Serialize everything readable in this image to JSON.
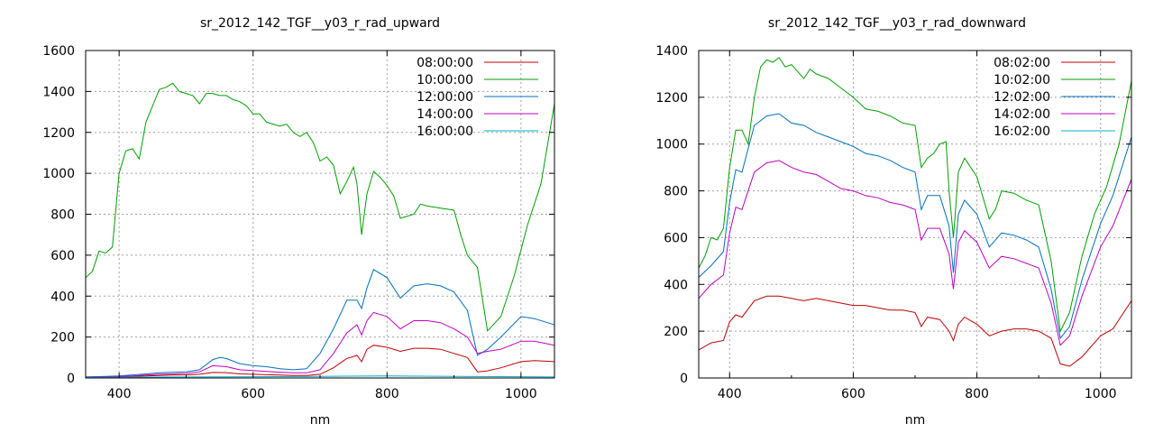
{
  "chart_data": [
    {
      "type": "line",
      "title": "sr_2012_142_TGF__y03_r_rad_upward",
      "xlabel": "nm",
      "ylabel": "",
      "xlim": [
        350,
        1050
      ],
      "ylim": [
        0,
        1600
      ],
      "xticks": [
        400,
        600,
        800,
        1000
      ],
      "yticks": [
        0,
        200,
        400,
        600,
        800,
        1000,
        1200,
        1400,
        1600
      ],
      "grid": true,
      "legend_position": "top-right",
      "series": [
        {
          "name": "08:00:00",
          "color": "#c00000",
          "x": [
            350,
            380,
            400,
            420,
            440,
            460,
            480,
            500,
            520,
            540,
            560,
            580,
            600,
            620,
            640,
            660,
            680,
            700,
            720,
            740,
            755,
            762,
            770,
            780,
            800,
            820,
            840,
            860,
            880,
            900,
            920,
            935,
            950,
            970,
            1000,
            1020,
            1050
          ],
          "y": [
            5,
            5,
            6,
            8,
            10,
            12,
            14,
            15,
            18,
            27,
            26,
            20,
            18,
            16,
            14,
            12,
            12,
            18,
            50,
            95,
            110,
            80,
            140,
            160,
            150,
            130,
            145,
            145,
            140,
            120,
            100,
            30,
            35,
            50,
            80,
            85,
            80
          ]
        },
        {
          "name": "10:00:00",
          "color": "#00a000",
          "x": [
            350,
            360,
            370,
            380,
            390,
            400,
            410,
            420,
            430,
            440,
            460,
            470,
            480,
            490,
            500,
            510,
            520,
            530,
            540,
            550,
            560,
            570,
            580,
            590,
            600,
            610,
            620,
            640,
            650,
            660,
            670,
            680,
            690,
            700,
            710,
            720,
            730,
            740,
            750,
            755,
            762,
            770,
            780,
            790,
            800,
            810,
            820,
            840,
            850,
            860,
            880,
            900,
            910,
            920,
            935,
            950,
            970,
            990,
            1010,
            1030,
            1050
          ],
          "y": [
            490,
            520,
            620,
            610,
            640,
            1000,
            1110,
            1120,
            1070,
            1250,
            1410,
            1420,
            1440,
            1400,
            1390,
            1380,
            1340,
            1390,
            1390,
            1380,
            1380,
            1360,
            1350,
            1330,
            1290,
            1290,
            1250,
            1230,
            1240,
            1200,
            1180,
            1200,
            1150,
            1060,
            1080,
            1040,
            900,
            960,
            1030,
            950,
            700,
            900,
            1010,
            980,
            940,
            890,
            780,
            800,
            850,
            840,
            830,
            820,
            700,
            600,
            540,
            230,
            300,
            500,
            750,
            950,
            1340
          ]
        },
        {
          "name": "12:00:00",
          "color": "#0070c0",
          "x": [
            350,
            380,
            400,
            420,
            440,
            460,
            480,
            500,
            520,
            540,
            550,
            560,
            580,
            600,
            620,
            640,
            660,
            680,
            700,
            710,
            720,
            740,
            755,
            762,
            770,
            780,
            800,
            820,
            840,
            860,
            880,
            900,
            920,
            935,
            950,
            970,
            1000,
            1020,
            1050
          ],
          "y": [
            5,
            8,
            10,
            15,
            20,
            25,
            28,
            30,
            40,
            90,
            100,
            95,
            70,
            60,
            55,
            45,
            40,
            45,
            120,
            180,
            240,
            380,
            380,
            340,
            440,
            530,
            490,
            390,
            450,
            460,
            450,
            420,
            330,
            110,
            140,
            200,
            300,
            290,
            260
          ]
        },
        {
          "name": "14:00:00",
          "color": "#c000c0",
          "x": [
            350,
            380,
            400,
            420,
            440,
            460,
            480,
            500,
            520,
            540,
            560,
            580,
            600,
            620,
            640,
            660,
            680,
            700,
            720,
            740,
            755,
            762,
            770,
            780,
            800,
            820,
            840,
            860,
            880,
            900,
            920,
            935,
            950,
            970,
            1000,
            1020,
            1050
          ],
          "y": [
            3,
            5,
            7,
            10,
            14,
            18,
            20,
            22,
            30,
            60,
            55,
            40,
            36,
            32,
            28,
            25,
            25,
            40,
            120,
            220,
            260,
            210,
            280,
            320,
            300,
            240,
            280,
            280,
            270,
            240,
            200,
            120,
            130,
            140,
            180,
            180,
            160
          ]
        },
        {
          "name": "16:00:00",
          "color": "#00b0d0",
          "x": [
            350,
            400,
            500,
            600,
            700,
            800,
            900,
            1000,
            1050
          ],
          "y": [
            2,
            3,
            5,
            6,
            8,
            10,
            8,
            6,
            5
          ]
        }
      ]
    },
    {
      "type": "line",
      "title": "sr_2012_142_TGF__y03_r_rad_downward",
      "xlabel": "nm",
      "ylabel": "",
      "xlim": [
        350,
        1050
      ],
      "ylim": [
        0,
        1400
      ],
      "xticks": [
        400,
        600,
        800,
        1000
      ],
      "yticks": [
        0,
        200,
        400,
        600,
        800,
        1000,
        1200,
        1400
      ],
      "grid": true,
      "legend_position": "top-right",
      "series": [
        {
          "name": "08:02:00",
          "color": "#c00000",
          "x": [
            350,
            370,
            390,
            400,
            410,
            420,
            440,
            460,
            480,
            500,
            520,
            540,
            560,
            580,
            600,
            620,
            640,
            660,
            680,
            700,
            710,
            720,
            740,
            755,
            762,
            770,
            780,
            800,
            820,
            840,
            860,
            880,
            900,
            920,
            935,
            950,
            970,
            1000,
            1020,
            1050
          ],
          "y": [
            120,
            150,
            160,
            240,
            270,
            260,
            330,
            350,
            350,
            340,
            330,
            340,
            330,
            320,
            310,
            310,
            300,
            290,
            290,
            280,
            220,
            260,
            250,
            200,
            160,
            230,
            260,
            230,
            180,
            200,
            210,
            210,
            200,
            170,
            60,
            50,
            90,
            180,
            210,
            330
          ]
        },
        {
          "name": "10:02:00",
          "color": "#00a000",
          "x": [
            350,
            360,
            370,
            380,
            390,
            400,
            410,
            420,
            430,
            440,
            450,
            460,
            470,
            480,
            490,
            500,
            510,
            520,
            530,
            540,
            560,
            580,
            600,
            620,
            640,
            660,
            680,
            700,
            710,
            720,
            730,
            740,
            750,
            755,
            762,
            770,
            780,
            800,
            820,
            830,
            840,
            860,
            880,
            900,
            920,
            935,
            950,
            970,
            990,
            1010,
            1030,
            1050
          ],
          "y": [
            470,
            520,
            600,
            590,
            640,
            900,
            1060,
            1060,
            1000,
            1200,
            1330,
            1360,
            1350,
            1370,
            1330,
            1340,
            1310,
            1280,
            1320,
            1300,
            1280,
            1240,
            1200,
            1150,
            1140,
            1120,
            1090,
            1080,
            900,
            940,
            960,
            1000,
            1010,
            800,
            600,
            880,
            940,
            860,
            680,
            720,
            800,
            790,
            760,
            740,
            500,
            200,
            280,
            520,
            700,
            820,
            1000,
            1270
          ]
        },
        {
          "name": "12:02:00",
          "color": "#0070c0",
          "x": [
            350,
            370,
            390,
            400,
            410,
            420,
            440,
            460,
            480,
            500,
            520,
            540,
            560,
            580,
            600,
            620,
            640,
            660,
            680,
            700,
            710,
            720,
            740,
            755,
            762,
            770,
            780,
            800,
            820,
            840,
            860,
            880,
            900,
            920,
            935,
            950,
            970,
            1000,
            1020,
            1050
          ],
          "y": [
            430,
            480,
            540,
            750,
            890,
            880,
            1080,
            1120,
            1130,
            1090,
            1080,
            1050,
            1030,
            1010,
            990,
            960,
            950,
            930,
            900,
            880,
            720,
            780,
            780,
            650,
            450,
            700,
            760,
            700,
            560,
            620,
            610,
            590,
            560,
            380,
            170,
            220,
            420,
            660,
            780,
            1030
          ]
        },
        {
          "name": "14:02:00",
          "color": "#c000c0",
          "x": [
            350,
            370,
            390,
            400,
            410,
            420,
            440,
            460,
            480,
            500,
            520,
            540,
            560,
            580,
            600,
            620,
            640,
            660,
            680,
            700,
            710,
            720,
            740,
            755,
            762,
            770,
            780,
            800,
            820,
            840,
            860,
            880,
            900,
            920,
            935,
            950,
            970,
            1000,
            1020,
            1050
          ],
          "y": [
            340,
            400,
            440,
            620,
            730,
            720,
            880,
            920,
            930,
            900,
            880,
            870,
            840,
            810,
            800,
            780,
            770,
            750,
            740,
            720,
            590,
            640,
            640,
            530,
            380,
            580,
            630,
            580,
            470,
            520,
            510,
            490,
            470,
            320,
            140,
            180,
            350,
            560,
            650,
            850
          ]
        },
        {
          "name": "16:02:00",
          "color": "#00b0d0",
          "x": [
            350,
            400,
            500,
            600,
            700,
            800,
            900,
            1000,
            1050
          ],
          "y": [
            0,
            0,
            0,
            0,
            0,
            0,
            0,
            0,
            0
          ]
        }
      ]
    }
  ]
}
